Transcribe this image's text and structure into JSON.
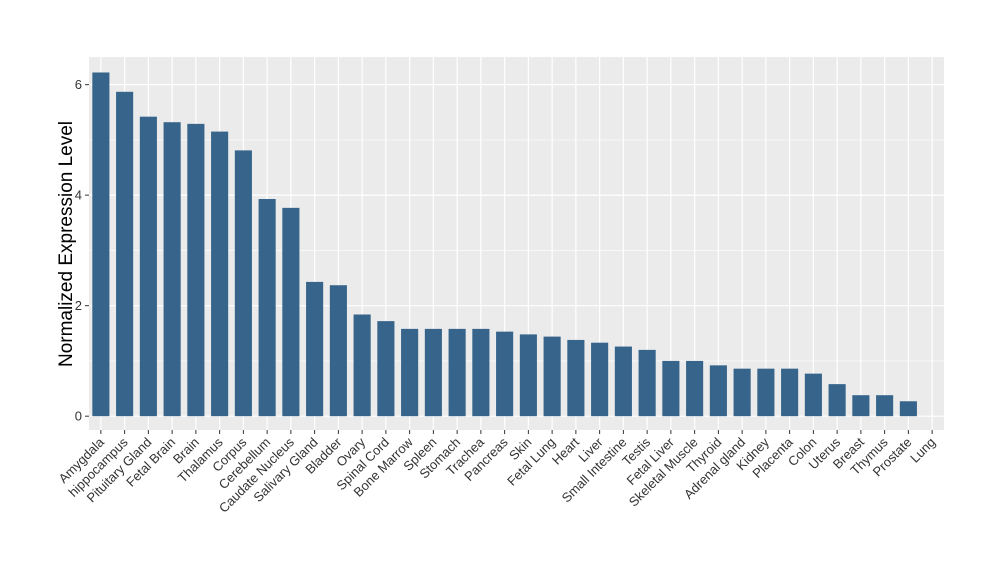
{
  "chart_data": {
    "type": "bar",
    "title": "",
    "xlabel": "",
    "ylabel": "Normalized Expression Level",
    "ylim": [
      -0.25,
      6.5
    ],
    "yticks": [
      0,
      2,
      4,
      6
    ],
    "grid": true,
    "legend": "none",
    "bar_color": "#36648B",
    "panel_color": "#EBEBEB",
    "categories": [
      "Amygdala",
      "hippocampus",
      "Pituitary Gland",
      "Fetal Brain",
      "Brain",
      "Thalamus",
      "Corpus",
      "Cerebellum",
      "Caudate Nucleus",
      "Salivary Gland",
      "Bladder",
      "Ovary",
      "Spinal Cord",
      "Bone Marrow",
      "Spleen",
      "Stomach",
      "Trachea",
      "Pancreas",
      "Skin",
      "Fetal Lung",
      "Heart",
      "Liver",
      "Small Intestine",
      "Testis",
      "Fetal Liver",
      "Skeletal Muscle",
      "Thyroid",
      "Adrenal gland",
      "Kidney",
      "Placenta",
      "Colon",
      "Uterus",
      "Breast",
      "Thymus",
      "Prostate",
      "Lung"
    ],
    "values": [
      6.22,
      5.87,
      5.42,
      5.32,
      5.29,
      5.15,
      4.81,
      3.93,
      3.77,
      2.43,
      2.37,
      1.84,
      1.72,
      1.58,
      1.58,
      1.58,
      1.58,
      1.53,
      1.48,
      1.44,
      1.38,
      1.33,
      1.26,
      1.2,
      1.0,
      1.0,
      0.92,
      0.86,
      0.86,
      0.86,
      0.77,
      0.58,
      0.38,
      0.38,
      0.27,
      0.0
    ]
  }
}
